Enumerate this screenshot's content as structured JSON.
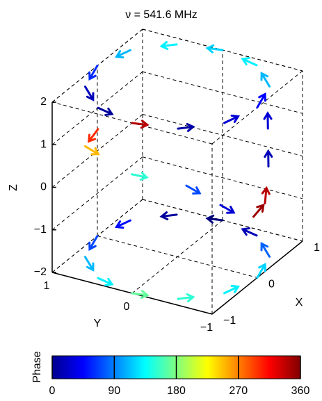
{
  "chart_data": {
    "type": "quiver3",
    "title": "ν = 541.6 MHz",
    "xlabel": "X",
    "ylabel": "Y",
    "zlabel": "Z",
    "xlim": [
      -1,
      1
    ],
    "ylim": [
      -1,
      1
    ],
    "zlim": [
      -2,
      2
    ],
    "xticks": [
      {
        "value": -1,
        "label": "−1"
      },
      0,
      1
    ],
    "yticks": [
      1,
      0,
      {
        "value": -1,
        "label": "−1"
      }
    ],
    "zticks": [
      {
        "value": -2,
        "label": "−2"
      },
      {
        "value": -1,
        "label": "−1"
      },
      0,
      1,
      2
    ],
    "grid": true,
    "colorbar": {
      "label": "Phase",
      "lim": [
        0,
        360
      ],
      "ticks": [
        0,
        90,
        180,
        270,
        360
      ],
      "colormap": "jet"
    },
    "series": [
      {
        "closed": true,
        "x": [
          1,
          0.87,
          0.5,
          0,
          -0.5,
          -0.87,
          -1,
          -0.87,
          -0.5,
          0,
          0.5,
          0.87
        ],
        "y": [
          0,
          0.5,
          0.87,
          1,
          0.87,
          0.5,
          0,
          -0.5,
          -0.87,
          -1,
          -0.87,
          -0.5
        ],
        "z": [
          2,
          2,
          2,
          2,
          2,
          2,
          2,
          2,
          2,
          2,
          2,
          2
        ],
        "phase": [
          120,
          130,
          110,
          60,
          20,
          10,
          340,
          15,
          30,
          45,
          110,
          130
        ]
      },
      {
        "closed": true,
        "x": [
          1,
          0.87,
          0.5,
          0,
          -0.5,
          -0.87,
          -1,
          -0.87,
          -0.5,
          0,
          0.5,
          0.87
        ],
        "y": [
          0,
          0.5,
          0.87,
          1,
          0.87,
          0.5,
          0,
          -0.5,
          -0.87,
          -1,
          -0.87,
          -0.5
        ],
        "z": [
          -2,
          -2,
          -2,
          -2,
          -2,
          -2,
          -2,
          -2,
          -2,
          -2,
          -2,
          -2
        ],
        "phase": [
          0,
          10,
          50,
          70,
          110,
          130,
          170,
          150,
          130,
          120,
          80,
          20
        ]
      },
      {
        "closed": false,
        "x": [
          -0.87,
          -0.5,
          -0.3,
          0.2,
          0.6
        ],
        "y": [
          0.5,
          0.87,
          0.4,
          0,
          -0.2
        ],
        "z": [
          1.5,
          0.6,
          0,
          -0.5,
          -1.2
        ],
        "phase": [
          300,
          250,
          150,
          70,
          30
        ]
      },
      {
        "closed": false,
        "x": [
          0.8,
          0.7,
          0.6,
          0.5
        ],
        "y": [
          -0.5,
          -0.7,
          -0.8,
          -0.85
        ],
        "z": [
          -1.5,
          -1,
          0,
          1
        ],
        "phase": [
          350,
          340,
          20,
          30
        ]
      }
    ]
  }
}
